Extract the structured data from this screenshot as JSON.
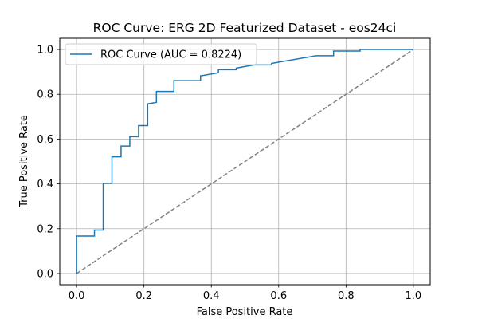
{
  "chart_data": {
    "type": "line",
    "title": "ROC Curve: ERG 2D Featurized Dataset - eos24ci",
    "xlabel": "False Positive Rate",
    "ylabel": "True Positive Rate",
    "xlim": [
      -0.05,
      1.05
    ],
    "ylim": [
      -0.05,
      1.05
    ],
    "xticks": [
      0.0,
      0.2,
      0.4,
      0.6,
      0.8,
      1.0
    ],
    "yticks": [
      0.0,
      0.2,
      0.4,
      0.6,
      0.8,
      1.0
    ],
    "tick_labels": [
      "0.0",
      "0.2",
      "0.4",
      "0.6",
      "0.8",
      "1.0"
    ],
    "grid": true,
    "legend": {
      "placement": "upper-left"
    },
    "series": [
      {
        "name": "ROC Curve (AUC = 0.8224)",
        "color": "#1f77b4",
        "style": "solid",
        "x": [
          0.0,
          0.0,
          0.053,
          0.053,
          0.079,
          0.079,
          0.105,
          0.105,
          0.132,
          0.132,
          0.158,
          0.158,
          0.184,
          0.184,
          0.211,
          0.211,
          0.237,
          0.237,
          0.289,
          0.289,
          0.368,
          0.368,
          0.421,
          0.421,
          0.474,
          0.474,
          0.526,
          0.526,
          0.579,
          0.579,
          0.711,
          0.711,
          0.763,
          0.763,
          0.842,
          0.842,
          1.0
        ],
        "y": [
          0.0,
          0.167,
          0.167,
          0.194,
          0.194,
          0.403,
          0.403,
          0.521,
          0.521,
          0.569,
          0.569,
          0.611,
          0.611,
          0.66,
          0.66,
          0.757,
          0.764,
          0.813,
          0.813,
          0.861,
          0.861,
          0.882,
          0.896,
          0.91,
          0.91,
          0.917,
          0.931,
          0.931,
          0.931,
          0.938,
          0.972,
          0.972,
          0.972,
          0.993,
          0.993,
          1.0,
          1.0
        ]
      },
      {
        "name": "",
        "color": "#808080",
        "style": "dashed",
        "x": [
          0.0,
          1.0
        ],
        "y": [
          0.0,
          1.0
        ]
      }
    ]
  }
}
